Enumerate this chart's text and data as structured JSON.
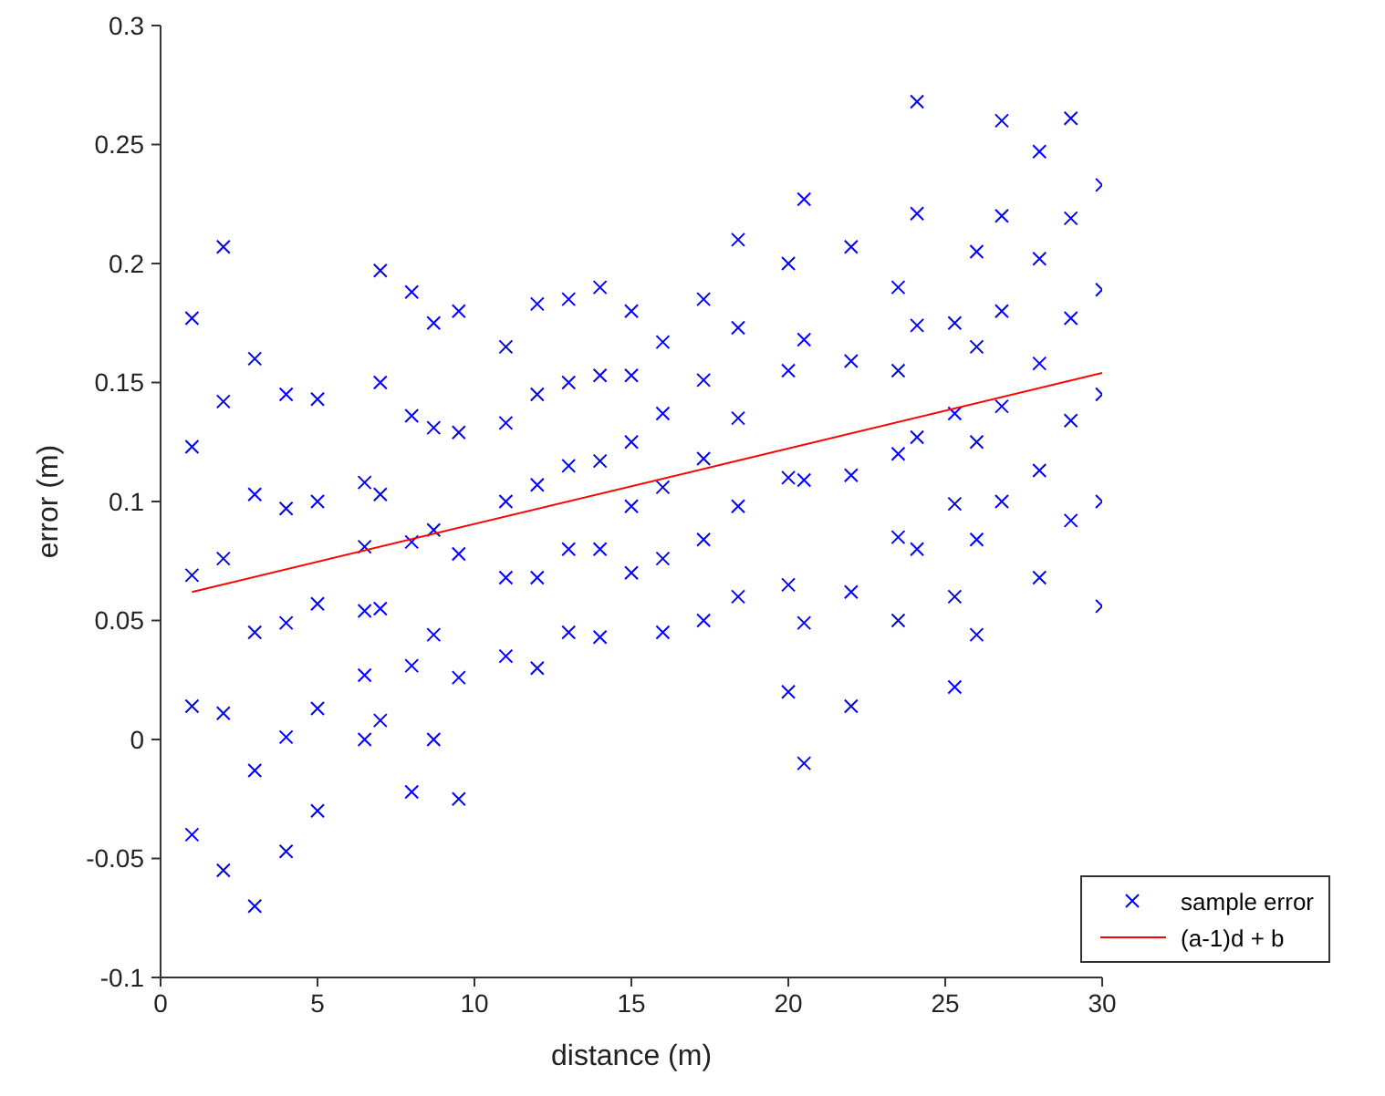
{
  "chart_data": {
    "type": "scatter",
    "xlabel": "distance (m)",
    "ylabel": "error (m)",
    "xlim": [
      0,
      30
    ],
    "xticks": [
      0,
      5,
      10,
      15,
      20,
      25,
      30
    ],
    "ylim": [
      -0.1,
      0.3
    ],
    "yticks": [
      -0.1,
      -0.05,
      0,
      0.05,
      0.1,
      0.15,
      0.2,
      0.25,
      0.3
    ],
    "grid": false,
    "legend": "bottom right",
    "series": [
      {
        "name": "sample error",
        "color": "#0000ff",
        "marker": "cross",
        "x": [
          1,
          1,
          1,
          1,
          1,
          2,
          2,
          2,
          2,
          2,
          3,
          3,
          3,
          3,
          3,
          4,
          4,
          4,
          4,
          4,
          5,
          5,
          5,
          5,
          5,
          6.5,
          6.5,
          6.5,
          6.5,
          6.5,
          7,
          7,
          7,
          7,
          7,
          8,
          8,
          8,
          8,
          8,
          8.7,
          8.7,
          8.7,
          8.7,
          8.7,
          9.5,
          9.5,
          9.5,
          9.5,
          9.5,
          11,
          11,
          11,
          11,
          11,
          12,
          12,
          12,
          12,
          12,
          13,
          13,
          13,
          13,
          13,
          14,
          14,
          14,
          14,
          14,
          15,
          15,
          15,
          15,
          15,
          16,
          16,
          16,
          16,
          16,
          17.3,
          17.3,
          17.3,
          17.3,
          17.3,
          18.4,
          18.4,
          18.4,
          18.4,
          18.4,
          20,
          20,
          20,
          20,
          20,
          20.5,
          20.5,
          20.5,
          20.5,
          20.5,
          22,
          22,
          22,
          22,
          22,
          23.5,
          23.5,
          23.5,
          23.5,
          23.5,
          24.1,
          24.1,
          24.1,
          24.1,
          24.1,
          25.3,
          25.3,
          25.3,
          25.3,
          25.3,
          26,
          26,
          26,
          26,
          26,
          26.8,
          26.8,
          26.8,
          26.8,
          26.8,
          28,
          28,
          28,
          28,
          28,
          29,
          29,
          29,
          29,
          29,
          30,
          30,
          30,
          30,
          30
        ],
        "values": [
          0.177,
          0.123,
          0.069,
          0.014,
          -0.04,
          0.207,
          0.142,
          0.076,
          0.011,
          -0.055,
          0.16,
          0.103,
          0.045,
          -0.013,
          -0.07,
          0.145,
          0.097,
          0.049,
          0.001,
          -0.047,
          0.143,
          0.1,
          0.057,
          0.013,
          -0.03,
          0.108,
          0.081,
          0.054,
          0.027,
          0,
          0.197,
          0.15,
          0.103,
          0.055,
          0.008,
          0.188,
          0.136,
          0.083,
          0.031,
          -0.022,
          0.175,
          0.131,
          0.088,
          0.044,
          0,
          0.18,
          0.129,
          0.078,
          0.026,
          -0.025,
          0.165,
          0.133,
          0.1,
          0.068,
          0.035,
          0.183,
          0.145,
          0.107,
          0.068,
          0.03,
          0.185,
          0.15,
          0.115,
          0.08,
          0.045,
          0.19,
          0.153,
          0.117,
          0.08,
          0.043,
          0.18,
          0.153,
          0.125,
          0.098,
          0.07,
          0.167,
          0.137,
          0.106,
          0.076,
          0.045,
          0.185,
          0.151,
          0.118,
          0.084,
          0.05,
          0.21,
          0.173,
          0.135,
          0.098,
          0.06,
          0.2,
          0.155,
          0.11,
          0.065,
          0.02,
          0.227,
          0.168,
          0.109,
          0.049,
          -0.01,
          0.207,
          0.159,
          0.111,
          0.062,
          0.014,
          0.19,
          0.155,
          0.12,
          0.085,
          0.05,
          0.268,
          0.221,
          0.174,
          0.127,
          0.08,
          0.175,
          0.137,
          0.099,
          0.06,
          0.022,
          0.205,
          0.165,
          0.125,
          0.084,
          0.044,
          0.26,
          0.22,
          0.18,
          0.14,
          0.1,
          0.247,
          0.202,
          0.158,
          0.113,
          0.068,
          0.261,
          0.219,
          0.177,
          0.134,
          0.092,
          0.233,
          0.189,
          0.145,
          0.1,
          0.056
        ]
      },
      {
        "name": "(a-1)d + b",
        "type": "line",
        "color": "#ff0000",
        "marker": "none",
        "x": [
          1,
          30
        ],
        "values": [
          0.062,
          0.154
        ]
      }
    ]
  }
}
